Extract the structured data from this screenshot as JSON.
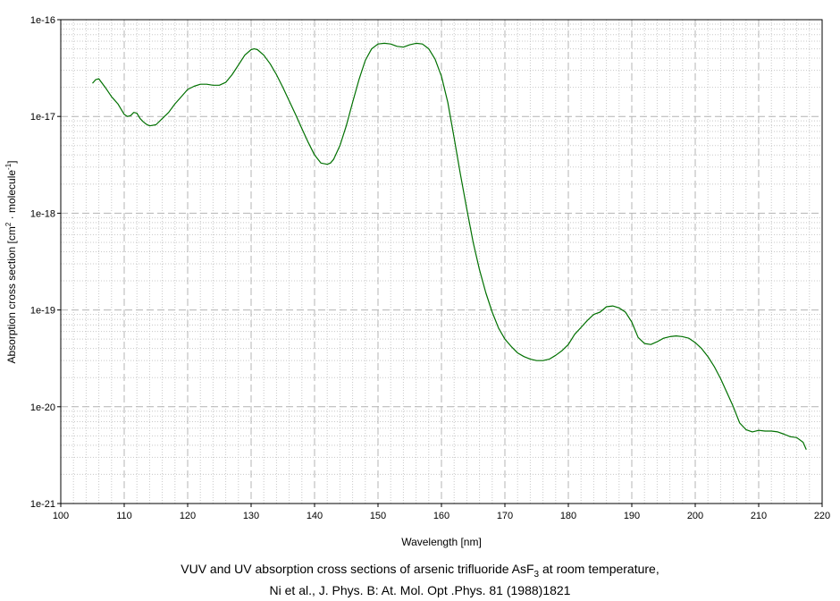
{
  "chart_data": {
    "type": "line",
    "xlabel": "Wavelength [nm]",
    "ylabel_main": "Absorption cross section [cm",
    "ylabel_sup1": "2",
    "ylabel_mid": " · molecule",
    "ylabel_sup2": "-1",
    "ylabel_end": "]",
    "xlim": [
      100,
      220
    ],
    "ylim": [
      1e-21,
      1e-16
    ],
    "yscale": "log",
    "grid": true,
    "x_ticks": [
      "100",
      "110",
      "120",
      "130",
      "140",
      "150",
      "160",
      "170",
      "180",
      "190",
      "200",
      "210",
      "220"
    ],
    "y_ticks": [
      "1e-21",
      "1e-20",
      "1e-19",
      "1e-18",
      "1e-17",
      "1e-16"
    ],
    "line_color": "#007000",
    "series": [
      {
        "x": [
          105,
          105.5,
          106,
          107,
          108,
          109,
          110,
          110.5,
          111,
          111.5,
          112,
          112.5,
          113,
          113.5,
          114,
          115,
          116,
          117,
          118,
          119,
          120,
          121,
          122,
          123,
          124,
          125,
          126,
          127,
          128,
          129,
          130,
          130.5,
          131,
          132,
          133,
          134,
          135,
          136,
          137,
          138,
          139,
          140,
          141,
          142,
          142.5,
          143,
          144,
          145,
          146,
          147,
          148,
          149,
          150,
          151,
          152,
          153,
          154,
          155,
          156,
          157,
          158,
          159,
          160,
          161,
          162,
          163,
          164,
          165,
          166,
          167,
          168,
          169,
          170,
          171,
          172,
          173,
          174,
          175,
          176,
          177,
          178,
          179,
          180,
          181,
          182,
          183,
          184,
          185,
          186,
          187,
          188,
          189,
          190,
          191,
          192,
          193,
          194,
          195,
          196,
          197,
          198,
          199,
          200,
          201,
          202,
          203,
          204,
          205,
          206,
          207,
          208,
          209,
          210,
          211,
          212,
          213,
          214,
          215,
          216,
          217,
          217.5
        ],
        "y": [
          2.2e-17,
          2.4e-17,
          2.45e-17,
          2e-17,
          1.6e-17,
          1.35e-17,
          1.05e-17,
          1e-17,
          1.02e-17,
          1.1e-17,
          1.08e-17,
          9.5e-18,
          8.8e-18,
          8.3e-18,
          8e-18,
          8.2e-18,
          9.5e-18,
          1.1e-17,
          1.35e-17,
          1.6e-17,
          1.9e-17,
          2.05e-17,
          2.15e-17,
          2.15e-17,
          2.1e-17,
          2.1e-17,
          2.25e-17,
          2.7e-17,
          3.4e-17,
          4.3e-17,
          4.9e-17,
          5e-17,
          4.9e-17,
          4.3e-17,
          3.5e-17,
          2.7e-17,
          2e-17,
          1.45e-17,
          1.05e-17,
          7.5e-18,
          5.4e-18,
          4e-18,
          3.3e-18,
          3.2e-18,
          3.3e-18,
          3.6e-18,
          5e-18,
          8e-18,
          1.4e-17,
          2.4e-17,
          3.8e-17,
          5e-17,
          5.6e-17,
          5.7e-17,
          5.6e-17,
          5.3e-17,
          5.2e-17,
          5.5e-17,
          5.7e-17,
          5.6e-17,
          5e-17,
          3.9e-17,
          2.6e-17,
          1.4e-17,
          6e-18,
          2.5e-18,
          1.1e-18,
          5e-19,
          2.6e-19,
          1.5e-19,
          9.5e-20,
          6.5e-20,
          5e-20,
          4.2e-20,
          3.6e-20,
          3.3e-20,
          3.1e-20,
          3e-20,
          3e-20,
          3.1e-20,
          3.4e-20,
          3.8e-20,
          4.4e-20,
          5.6e-20,
          6.6e-20,
          7.8e-20,
          9e-20,
          9.5e-20,
          1.08e-19,
          1.1e-19,
          1.05e-19,
          9.5e-20,
          7.5e-20,
          5.2e-20,
          4.5e-20,
          4.4e-20,
          4.7e-20,
          5.1e-20,
          5.3e-20,
          5.4e-20,
          5.3e-20,
          5.1e-20,
          4.6e-20,
          4e-20,
          3.3e-20,
          2.6e-20,
          1.95e-20,
          1.4e-20,
          1e-20,
          6.8e-21,
          5.8e-21,
          5.5e-21,
          5.7e-21,
          5.6e-21,
          5.6e-21,
          5.5e-21,
          5.2e-21,
          4.9e-21,
          4.8e-21,
          4.3e-21,
          3.6e-21
        ]
      }
    ]
  },
  "caption": {
    "line1_pre": "VUV and UV absorption cross sections of arsenic trifluoride AsF",
    "line1_sub": "3",
    "line1_post": " at room temperature,",
    "line2": "Ni et al., J. Phys. B: At. Mol. Opt .Phys. 81 (1988)1821"
  }
}
